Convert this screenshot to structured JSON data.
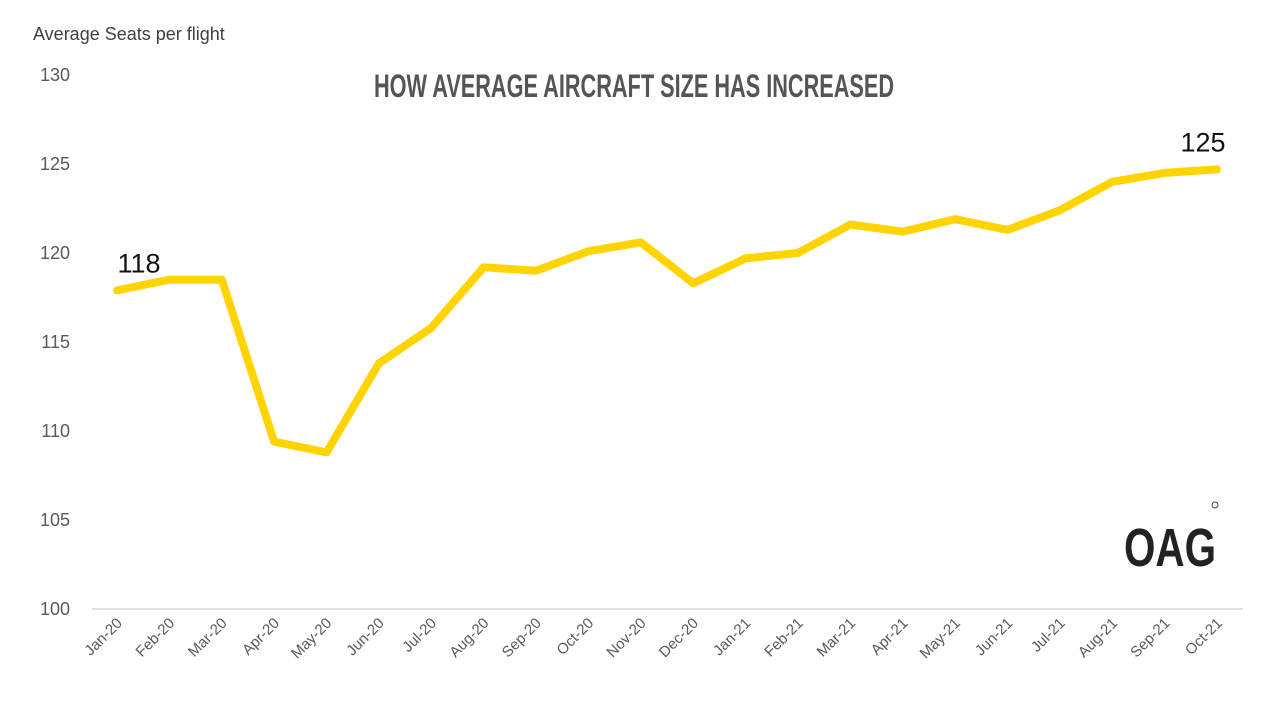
{
  "chart_data": {
    "type": "line",
    "title": "HOW AVERAGE AIRCRAFT SIZE HAS INCREASED",
    "ylabel": "Average Seats per flight",
    "xlabel": "",
    "ylim": [
      100,
      130
    ],
    "yticks": [
      100,
      105,
      110,
      115,
      120,
      125,
      130
    ],
    "grid": false,
    "categories": [
      "Jan-20",
      "Feb-20",
      "Mar-20",
      "Apr-20",
      "May-20",
      "Jun-20",
      "Jul-20",
      "Aug-20",
      "Sep-20",
      "Oct-20",
      "Nov-20",
      "Dec-20",
      "Jan-21",
      "Feb-21",
      "Mar-21",
      "Apr-21",
      "May-21",
      "Jun-21",
      "Jul-21",
      "Aug-21",
      "Sep-21",
      "Oct-21"
    ],
    "series": [
      {
        "name": "Average Seats per flight",
        "color": "#FFD400",
        "values": [
          117.9,
          118.5,
          118.5,
          109.4,
          108.8,
          113.8,
          115.8,
          119.2,
          119.0,
          120.1,
          120.6,
          118.3,
          119.7,
          120.0,
          121.6,
          121.2,
          121.9,
          121.3,
          122.4,
          124.0,
          124.5,
          124.7
        ]
      }
    ],
    "data_labels": [
      {
        "category": "Jan-20",
        "text": "118"
      },
      {
        "category": "Oct-21",
        "text": "125"
      }
    ]
  },
  "logo": "OAG"
}
